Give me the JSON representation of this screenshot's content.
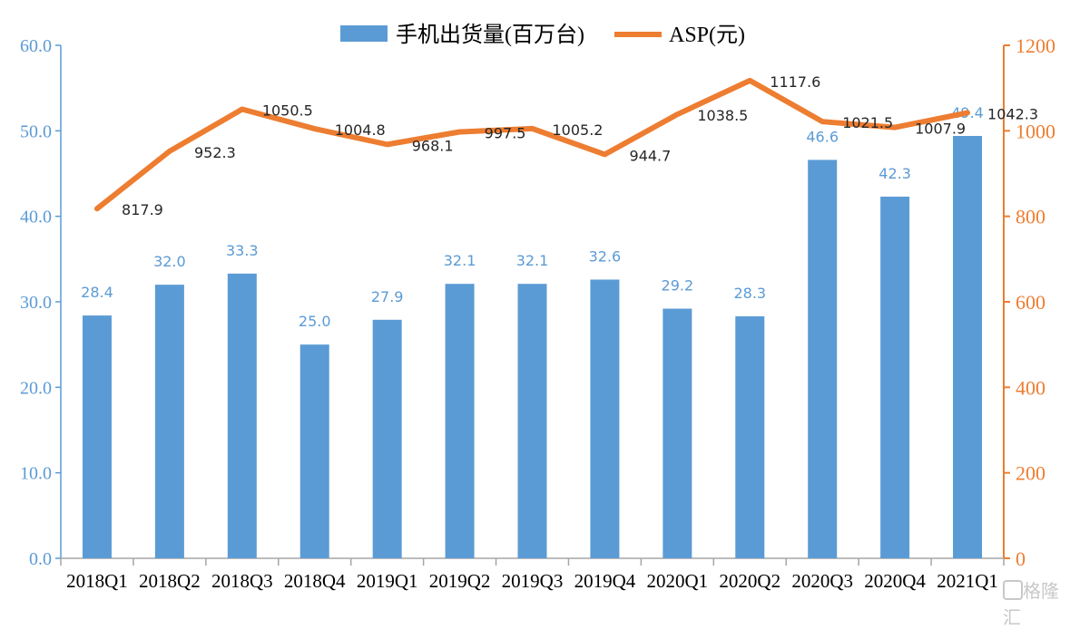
{
  "chart_data": {
    "type": "bar+line",
    "categories": [
      "2018Q1",
      "2018Q2",
      "2018Q3",
      "2018Q4",
      "2019Q1",
      "2019Q2",
      "2019Q3",
      "2019Q4",
      "2020Q1",
      "2020Q2",
      "2020Q3",
      "2020Q4",
      "2021Q1"
    ],
    "series": [
      {
        "name": "手机出货量(百万台)",
        "type": "bar",
        "axis": "left",
        "color": "#5B9BD5",
        "values": [
          28.4,
          32.0,
          33.3,
          25.0,
          27.9,
          32.1,
          32.1,
          32.6,
          29.2,
          28.3,
          46.6,
          42.3,
          49.4
        ],
        "labels": [
          "28.4",
          "32.0",
          "33.3",
          "25.0",
          "27.9",
          "32.1",
          "32.1",
          "32.6",
          "29.2",
          "28.3",
          "46.6",
          "42.3",
          "49.4"
        ]
      },
      {
        "name": "ASP(元)",
        "type": "line",
        "axis": "right",
        "color": "#ED7D31",
        "values": [
          817.9,
          952.3,
          1050.5,
          1004.8,
          968.1,
          997.5,
          1005.2,
          944.7,
          1038.5,
          1117.6,
          1021.5,
          1007.9,
          1042.3
        ],
        "labels": [
          "817.9",
          "952.3",
          "1050.5",
          "1004.8",
          "968.1",
          "997.5",
          "1005.2",
          "944.7",
          "1038.5",
          "1117.6",
          "1021.5",
          "1007.9",
          "1042.3"
        ]
      }
    ],
    "y_left": {
      "range": [
        0,
        60
      ],
      "ticks": [
        "0.0",
        "10.0",
        "20.0",
        "30.0",
        "40.0",
        "50.0",
        "60.0"
      ],
      "color": "#5B9BD5"
    },
    "y_right": {
      "range": [
        0,
        1200
      ],
      "ticks": [
        "0",
        "200",
        "400",
        "600",
        "800",
        "1000",
        "1200"
      ],
      "color": "#ED7D31"
    },
    "legend": "top-center",
    "grid": false
  },
  "watermark": "格隆汇"
}
